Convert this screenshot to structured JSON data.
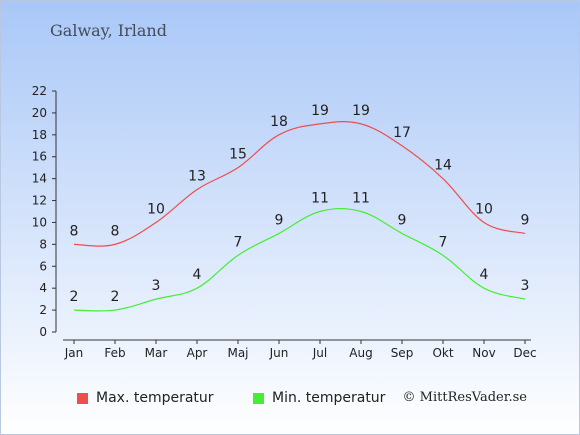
{
  "header": {
    "location": "Galway, Irland"
  },
  "footer": {
    "copyright": "© MittResVader.se"
  },
  "colors": {
    "max": "#f04d4d",
    "min": "#44ee33"
  },
  "chart_data": {
    "type": "line",
    "categories": [
      "Jan",
      "Feb",
      "Mar",
      "Apr",
      "Maj",
      "Jun",
      "Jul",
      "Aug",
      "Sep",
      "Okt",
      "Nov",
      "Dec"
    ],
    "series": [
      {
        "name": "Max. temperatur",
        "values": [
          8,
          8,
          10,
          13,
          15,
          18,
          19,
          19,
          17,
          14,
          10,
          9
        ]
      },
      {
        "name": "Min. temperatur",
        "values": [
          2,
          2,
          3,
          4,
          7,
          9,
          11,
          11,
          9,
          7,
          4,
          3
        ]
      }
    ],
    "yticks": [
      0,
      2,
      4,
      6,
      8,
      10,
      12,
      14,
      16,
      18,
      20,
      22
    ],
    "ylim": [
      0,
      22
    ],
    "legend_position": "bottom-left"
  }
}
